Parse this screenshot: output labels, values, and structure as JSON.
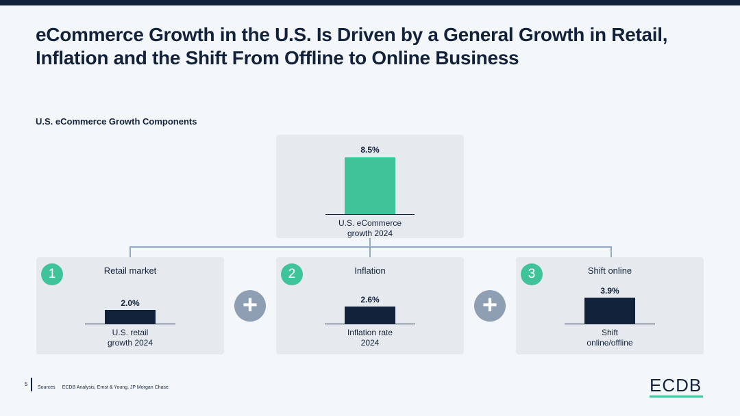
{
  "header": {
    "title": "eCommerce Growth in the U.S. Is Driven by a General Growth in Retail, Inflation and the Shift From Offline to Online Business"
  },
  "chart_data": {
    "type": "bar",
    "title": "U.S. eCommerce Growth Components",
    "unit": "%",
    "total": {
      "label": "U.S. eCommerce growth 2024",
      "value": 8.5,
      "value_label": "8.5%",
      "color": "#3fc49a"
    },
    "components": [
      {
        "number": "1",
        "title": "Retail market",
        "label": "U.S. retail growth 2024",
        "value": 2.0,
        "value_label": "2.0%"
      },
      {
        "number": "2",
        "title": "Inflation",
        "label": "Inflation rate 2024",
        "value": 2.6,
        "value_label": "2.6%"
      },
      {
        "number": "3",
        "title": "Shift online",
        "label": "Shift online/offline",
        "value": 3.9,
        "value_label": "3.9%"
      }
    ],
    "operator": "+",
    "component_color": "#13223b"
  },
  "footer": {
    "page_number": "5",
    "sources_label": "Sources",
    "sources_text": "ECDB Analysis, Ernst & Young, JP Morgan Chase.",
    "logo": "ECDB"
  }
}
